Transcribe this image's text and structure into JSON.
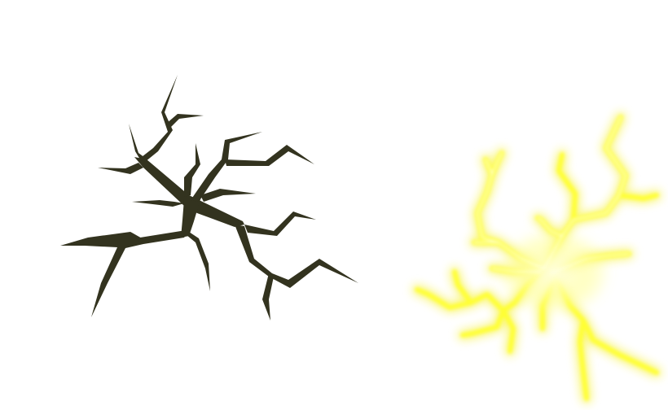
{
  "canvas": {
    "background": "#ffffff"
  },
  "dark_crack": {
    "icon": "crack-icon",
    "color": "#33331f"
  },
  "glow_crack": {
    "icon": "glowing-crack-icon",
    "core_color": "#ffffee",
    "glow_color": "#ffff33",
    "edge_color": "#f5ee00"
  }
}
